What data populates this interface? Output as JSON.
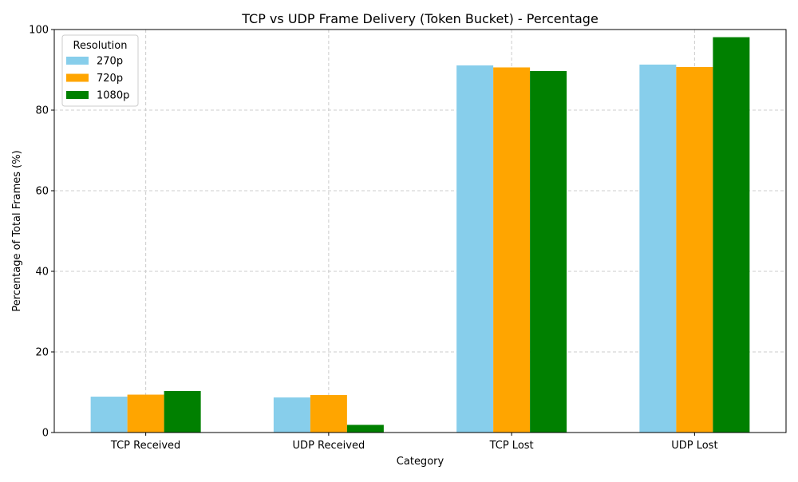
{
  "chart_data": {
    "type": "bar",
    "title": "TCP vs UDP Frame Delivery (Token Bucket) - Percentage",
    "xlabel": "Category",
    "ylabel": "Percentage of Total Frames (%)",
    "categories": [
      "TCP Received",
      "UDP Received",
      "TCP Lost",
      "UDP Lost"
    ],
    "series": [
      {
        "name": "270p",
        "color": "#87ceeb",
        "values": [
          8.9,
          8.7,
          91.1,
          91.3
        ]
      },
      {
        "name": "720p",
        "color": "#ffa500",
        "values": [
          9.4,
          9.3,
          90.6,
          90.7
        ]
      },
      {
        "name": "1080p",
        "color": "#008000",
        "values": [
          10.3,
          1.9,
          89.7,
          98.1
        ]
      }
    ],
    "ylim": [
      0,
      100
    ],
    "yticks": [
      0,
      20,
      40,
      60,
      80,
      100
    ],
    "grid": true,
    "legend": {
      "title": "Resolution",
      "position": "top-left"
    }
  }
}
